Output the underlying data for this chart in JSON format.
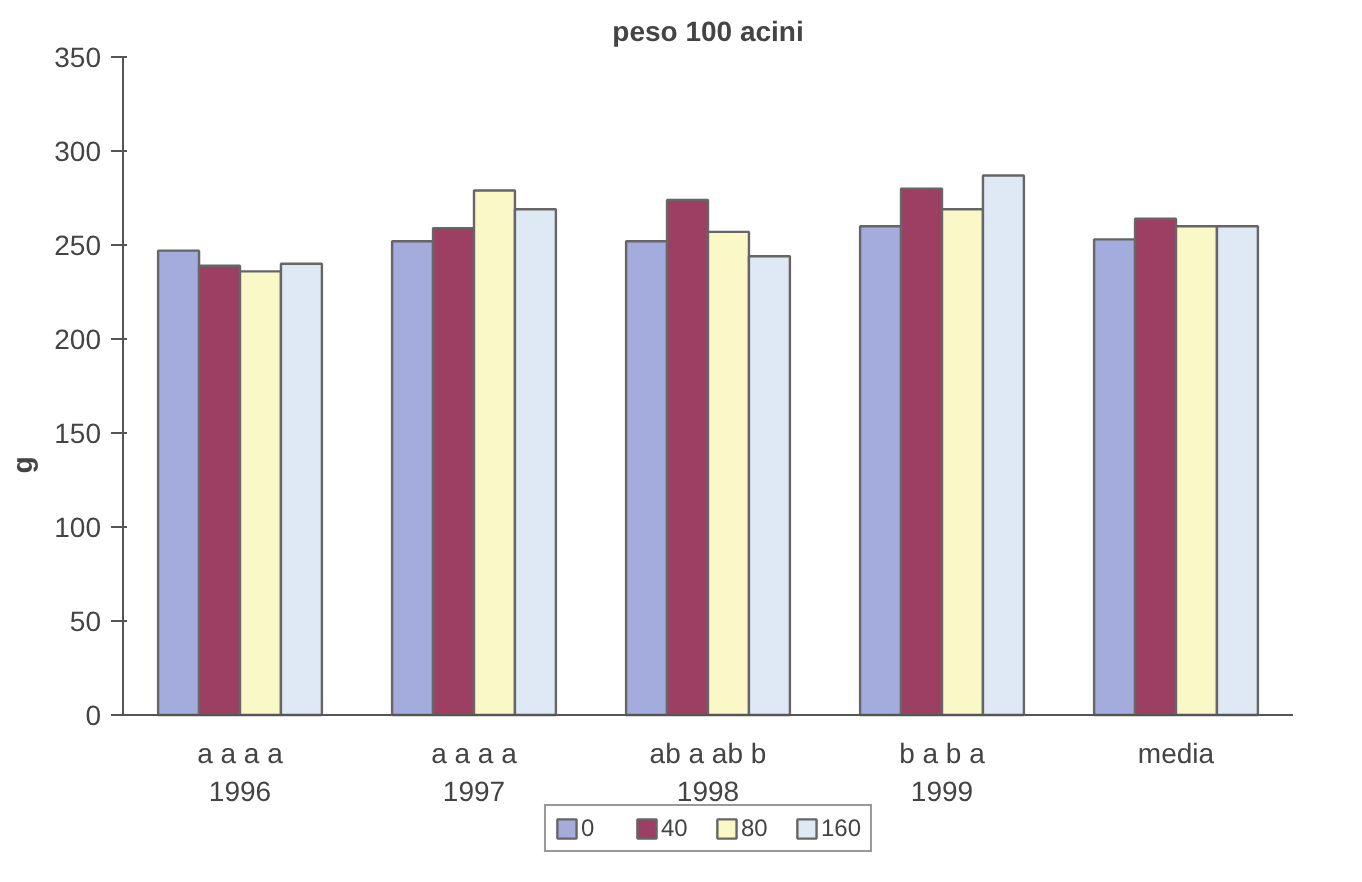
{
  "chart_data": {
    "type": "bar",
    "title": "peso 100 acini",
    "ylabel": "g",
    "categories": [
      "a a a a\n1996",
      "a a a a\n1997",
      "ab a ab b\n1998",
      "b a b a\n1999",
      "media"
    ],
    "series": [
      {
        "name": "0",
        "color": "#a3acdc",
        "values": [
          247,
          252,
          252,
          260,
          253
        ]
      },
      {
        "name": "40",
        "color": "#9c3f62",
        "values": [
          239,
          259,
          274,
          280,
          264
        ]
      },
      {
        "name": "80",
        "color": "#fbf8c8",
        "values": [
          236,
          279,
          257,
          269,
          260
        ]
      },
      {
        "name": "160",
        "color": "#dfe9f5",
        "values": [
          240,
          269,
          244,
          287,
          260
        ]
      }
    ],
    "ylim": [
      0,
      350
    ],
    "yticks": [
      0,
      50,
      100,
      150,
      200,
      250,
      300,
      350
    ],
    "grid": false,
    "legend": "bottom"
  }
}
